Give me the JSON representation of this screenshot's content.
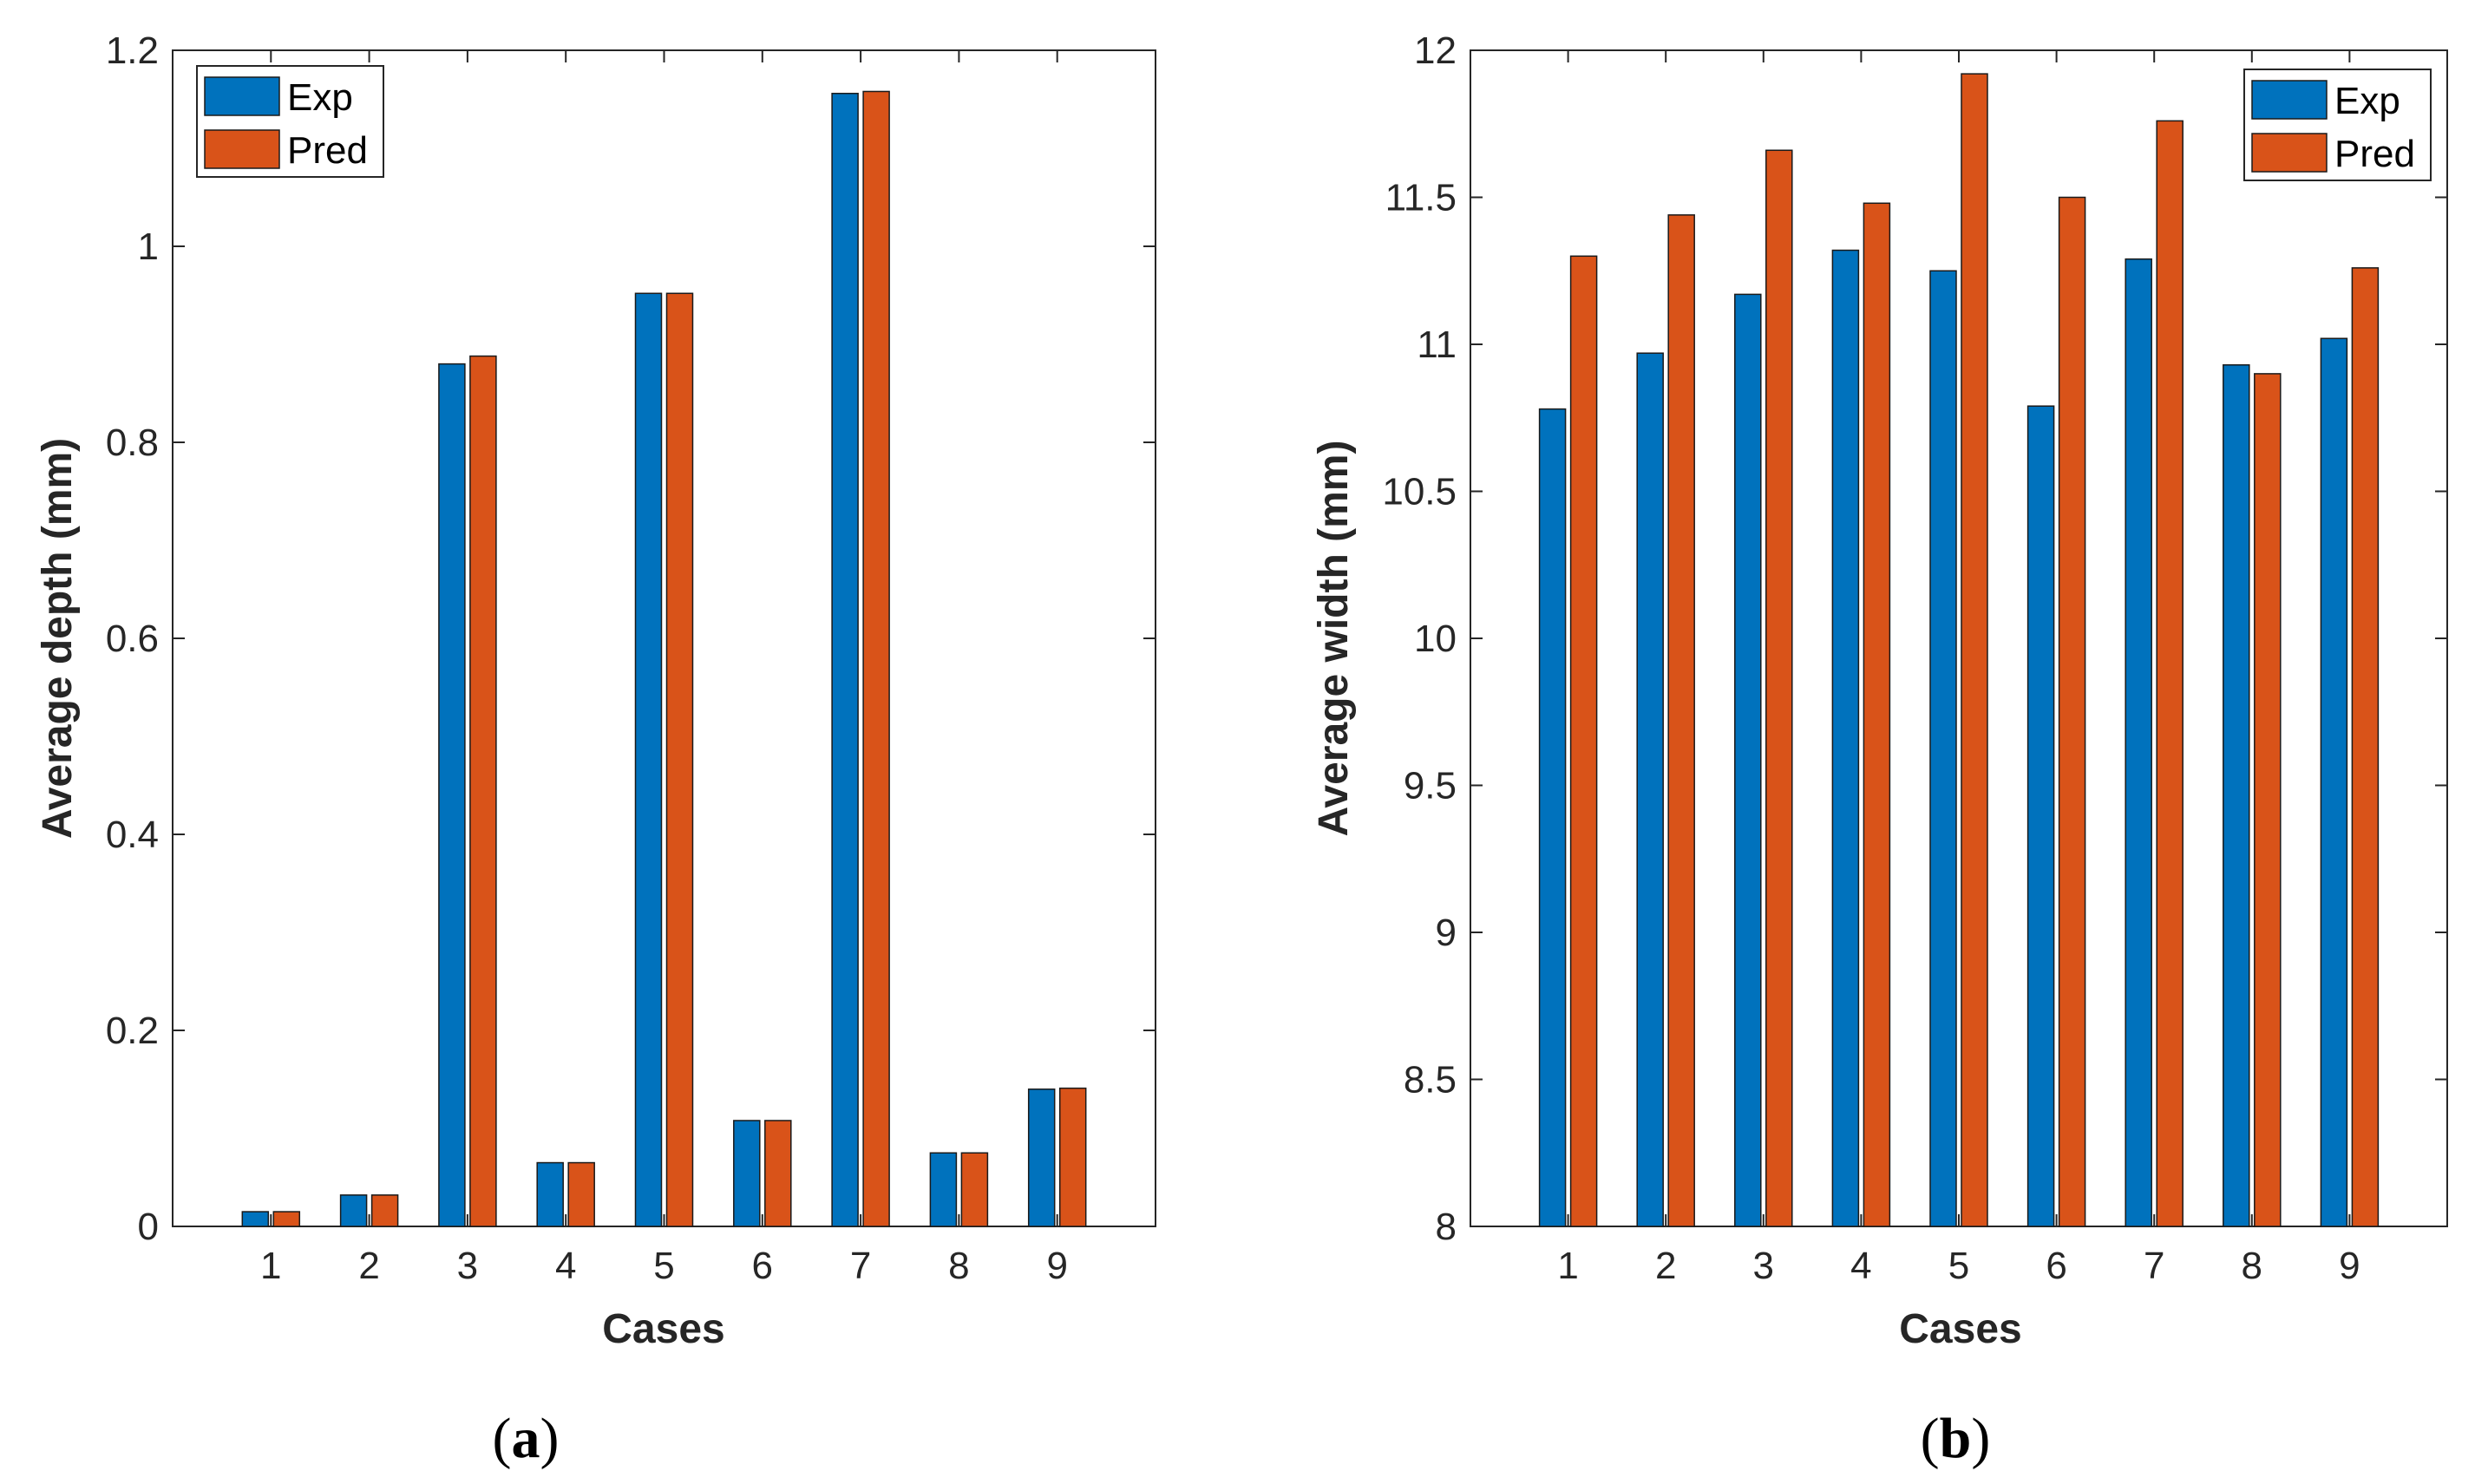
{
  "chart_data": [
    {
      "type": "bar",
      "panel_label": "a",
      "categories": [
        "1",
        "2",
        "3",
        "4",
        "5",
        "6",
        "7",
        "8",
        "9"
      ],
      "series": [
        {
          "name": "Exp",
          "color": "#0072BD",
          "values": [
            0.015,
            0.032,
            0.88,
            0.065,
            0.952,
            0.108,
            1.156,
            0.075,
            0.14
          ]
        },
        {
          "name": "Pred",
          "color": "#D95319",
          "values": [
            0.015,
            0.032,
            0.888,
            0.065,
            0.952,
            0.108,
            1.158,
            0.075,
            0.141
          ]
        }
      ],
      "title": "",
      "xlabel": "Cases",
      "ylabel": "Average depth (mm)",
      "ylim": [
        0,
        1.2
      ],
      "yticks": [
        0,
        0.2,
        0.4,
        0.6,
        0.8,
        1,
        1.2
      ],
      "ytick_labels": [
        "0",
        "0.2",
        "0.4",
        "0.6",
        "0.8",
        "1",
        "1.2"
      ],
      "grid": false,
      "legend_position": "top-left"
    },
    {
      "type": "bar",
      "panel_label": "b",
      "categories": [
        "1",
        "2",
        "3",
        "4",
        "5",
        "6",
        "7",
        "8",
        "9"
      ],
      "series": [
        {
          "name": "Exp",
          "color": "#0072BD",
          "values": [
            10.78,
            10.97,
            11.17,
            11.32,
            11.25,
            10.79,
            11.29,
            10.93,
            11.02
          ]
        },
        {
          "name": "Pred",
          "color": "#D95319",
          "values": [
            11.3,
            11.44,
            11.66,
            11.48,
            11.92,
            11.5,
            11.76,
            10.9,
            11.26
          ]
        }
      ],
      "title": "",
      "xlabel": "Cases",
      "ylabel": "Average width (mm)",
      "ylim": [
        8,
        12
      ],
      "yticks": [
        8,
        8.5,
        9,
        9.5,
        10,
        10.5,
        11,
        11.5,
        12
      ],
      "ytick_labels": [
        "8",
        "8.5",
        "9",
        "9.5",
        "10",
        "10.5",
        "11",
        "11.5",
        "12"
      ],
      "grid": false,
      "legend_position": "top-right"
    }
  ]
}
